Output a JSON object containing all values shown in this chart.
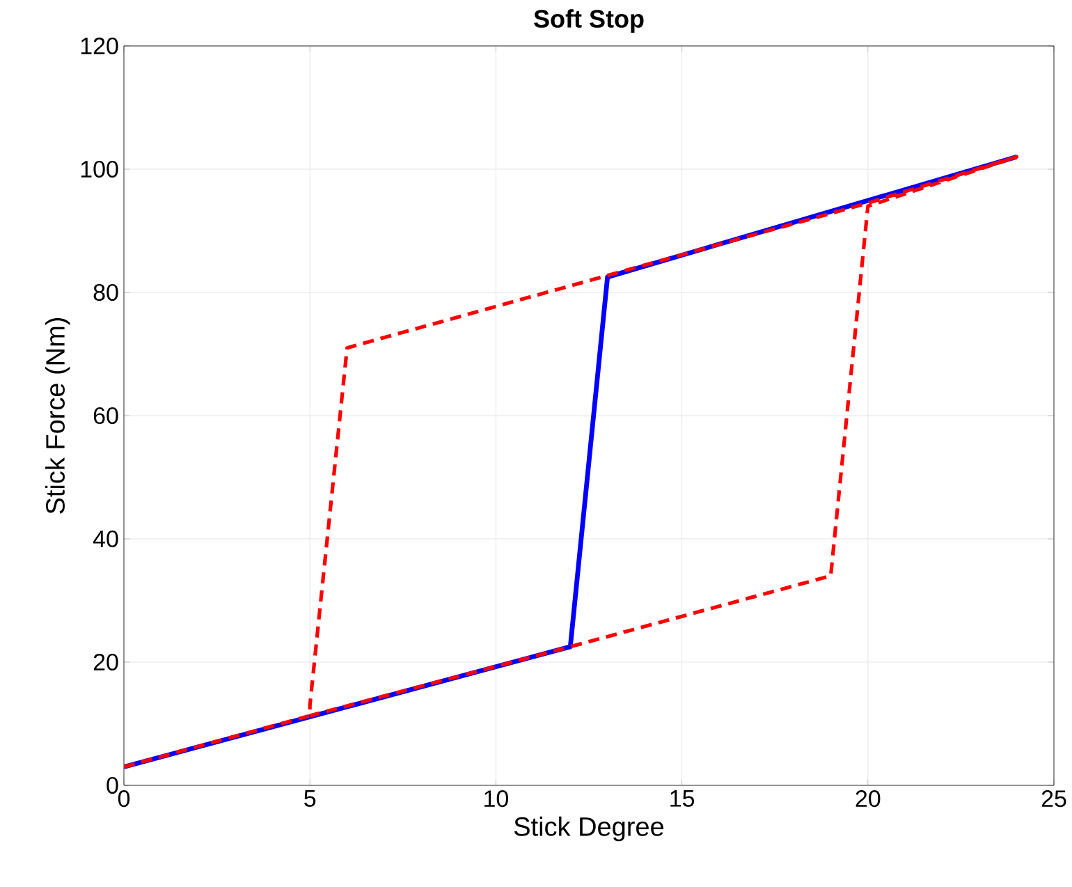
{
  "chart_data": {
    "type": "line",
    "title": "Soft Stop",
    "xlabel": "Stick Degree",
    "ylabel": "Stick Force (Nm)",
    "xlim": [
      0,
      25
    ],
    "ylim": [
      0,
      120
    ],
    "xticks": [
      0,
      5,
      10,
      15,
      20,
      25
    ],
    "yticks": [
      0,
      20,
      40,
      60,
      80,
      100,
      120
    ],
    "grid": true,
    "series": [
      {
        "color": "#0000ff",
        "line_style": "solid",
        "x": [
          0,
          12,
          13,
          24
        ],
        "values": [
          3,
          22.5,
          82.5,
          102
        ]
      },
      {
        "color": "#ff0000",
        "line_style": "dashed",
        "x": [
          0,
          5,
          5,
          6,
          20,
          24,
          20,
          19,
          12,
          5
        ],
        "values": [
          3,
          11.3,
          13,
          71,
          94.5,
          102,
          94,
          34,
          22.5,
          11.3
        ]
      }
    ]
  }
}
